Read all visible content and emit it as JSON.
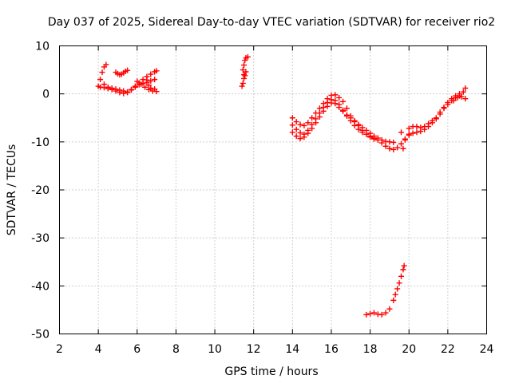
{
  "chart_data": {
    "type": "scatter",
    "title": "Day 037 of 2025, Sidereal Day-to-day VTEC variation (SDTVAR) for receiver rio2",
    "xlabel": "GPS time / hours",
    "ylabel": "SDTVAR / TECUs",
    "xlim": [
      2,
      24
    ],
    "ylim": [
      -50,
      10
    ],
    "xticks": [
      "2",
      "4",
      "6",
      "8",
      "10",
      "12",
      "14",
      "16",
      "18",
      "20",
      "22",
      "24"
    ],
    "yticks": [
      "10",
      "0",
      "-10",
      "-20",
      "-30",
      "-40",
      "-50"
    ],
    "grid": true,
    "marker": "+",
    "color": "#ff0000",
    "series": [
      {
        "name": "sat-a",
        "points": [
          [
            4.0,
            1.6
          ],
          [
            4.1,
            3.0
          ],
          [
            4.2,
            4.5
          ],
          [
            4.3,
            5.6
          ],
          [
            4.4,
            6.1
          ],
          [
            4.3,
            2.0
          ],
          [
            4.5,
            1.4
          ],
          [
            4.7,
            1.2
          ],
          [
            4.9,
            1.0
          ],
          [
            5.1,
            0.8
          ],
          [
            5.3,
            0.6
          ],
          [
            5.5,
            0.4
          ],
          [
            5.7,
            0.8
          ],
          [
            5.9,
            1.4
          ],
          [
            6.1,
            1.9
          ],
          [
            6.3,
            2.2
          ],
          [
            6.5,
            2.4
          ],
          [
            6.7,
            2.7
          ],
          [
            6.9,
            3.0
          ]
        ]
      },
      {
        "name": "sat-b",
        "points": [
          [
            4.1,
            1.4
          ],
          [
            4.3,
            1.3
          ],
          [
            4.5,
            1.1
          ],
          [
            4.7,
            0.9
          ],
          [
            4.9,
            0.6
          ],
          [
            5.1,
            0.3
          ],
          [
            5.3,
            0.1
          ],
          [
            5.5,
            0.3
          ],
          [
            5.7,
            0.9
          ],
          [
            5.9,
            1.6
          ],
          [
            6.1,
            2.3
          ],
          [
            6.3,
            3.0
          ],
          [
            6.5,
            3.6
          ],
          [
            6.7,
            4.1
          ],
          [
            6.9,
            4.6
          ],
          [
            7.0,
            4.8
          ]
        ]
      },
      {
        "name": "sat-c",
        "points": [
          [
            4.9,
            4.5
          ],
          [
            5.0,
            4.2
          ],
          [
            5.1,
            4.0
          ],
          [
            5.2,
            4.1
          ],
          [
            5.3,
            4.4
          ],
          [
            5.4,
            4.7
          ],
          [
            5.5,
            4.9
          ]
        ]
      },
      {
        "name": "sat-d",
        "points": [
          [
            6.0,
            2.6
          ],
          [
            6.2,
            2.0
          ],
          [
            6.4,
            1.4
          ],
          [
            6.6,
            0.9
          ],
          [
            6.8,
            0.6
          ],
          [
            7.0,
            0.5
          ],
          [
            6.5,
            2.9
          ],
          [
            6.6,
            1.8
          ],
          [
            6.7,
            1.2
          ],
          [
            6.9,
            1.0
          ]
        ]
      },
      {
        "name": "sat-e",
        "points": [
          [
            11.4,
            1.6
          ],
          [
            11.45,
            2.2
          ],
          [
            11.5,
            3.2
          ],
          [
            11.5,
            4.0
          ],
          [
            11.45,
            5.0
          ],
          [
            11.5,
            6.0
          ],
          [
            11.55,
            7.0
          ],
          [
            11.6,
            7.5
          ],
          [
            11.7,
            7.7
          ],
          [
            11.6,
            4.6
          ],
          [
            11.55,
            3.8
          ]
        ]
      },
      {
        "name": "sat-f",
        "points": [
          [
            14.0,
            -5.0
          ],
          [
            14.2,
            -5.8
          ],
          [
            14.4,
            -6.4
          ],
          [
            14.6,
            -6.6
          ],
          [
            14.8,
            -6.0
          ],
          [
            15.0,
            -5.0
          ],
          [
            15.2,
            -4.0
          ],
          [
            15.4,
            -3.0
          ],
          [
            15.6,
            -2.0
          ],
          [
            15.8,
            -1.0
          ],
          [
            16.0,
            -0.3
          ],
          [
            16.2,
            -0.2
          ],
          [
            16.4,
            -0.8
          ],
          [
            16.6,
            -1.6
          ],
          [
            16.8,
            -3.0
          ],
          [
            17.0,
            -4.6
          ],
          [
            17.2,
            -5.6
          ],
          [
            17.4,
            -6.4
          ],
          [
            17.6,
            -7.0
          ],
          [
            17.8,
            -7.6
          ],
          [
            18.0,
            -8.2
          ],
          [
            18.2,
            -8.8
          ],
          [
            18.4,
            -9.2
          ],
          [
            18.6,
            -9.6
          ],
          [
            18.8,
            -9.9
          ],
          [
            19.0,
            -10.0
          ],
          [
            19.2,
            -10.1
          ]
        ]
      },
      {
        "name": "sat-g",
        "points": [
          [
            14.0,
            -6.5
          ],
          [
            14.2,
            -7.4
          ],
          [
            14.4,
            -8.1
          ],
          [
            14.6,
            -8.4
          ],
          [
            14.8,
            -7.6
          ],
          [
            15.0,
            -6.4
          ],
          [
            15.2,
            -5.2
          ],
          [
            15.4,
            -4.0
          ],
          [
            15.6,
            -2.8
          ],
          [
            15.8,
            -1.8
          ],
          [
            16.0,
            -1.2
          ],
          [
            16.2,
            -1.4
          ],
          [
            16.4,
            -2.2
          ],
          [
            16.6,
            -3.4
          ],
          [
            16.8,
            -4.6
          ],
          [
            17.0,
            -5.6
          ],
          [
            17.2,
            -6.6
          ],
          [
            17.4,
            -7.4
          ],
          [
            17.6,
            -8.0
          ],
          [
            17.8,
            -8.4
          ],
          [
            18.0,
            -8.8
          ],
          [
            18.2,
            -9.2
          ],
          [
            18.4,
            -9.6
          ],
          [
            18.6,
            -10.2
          ],
          [
            18.8,
            -10.9
          ],
          [
            19.0,
            -11.4
          ],
          [
            19.2,
            -11.6
          ],
          [
            19.4,
            -11.2
          ],
          [
            19.6,
            -10.4
          ],
          [
            19.8,
            -9.4
          ],
          [
            20.0,
            -8.6
          ]
        ]
      },
      {
        "name": "sat-h",
        "points": [
          [
            14.0,
            -8.0
          ],
          [
            14.2,
            -8.8
          ],
          [
            14.4,
            -9.3
          ],
          [
            14.6,
            -9.0
          ],
          [
            14.8,
            -8.2
          ],
          [
            15.0,
            -7.2
          ],
          [
            15.2,
            -6.0
          ],
          [
            15.4,
            -4.8
          ],
          [
            15.6,
            -3.6
          ],
          [
            15.8,
            -2.6
          ],
          [
            16.0,
            -1.9
          ],
          [
            16.2,
            -2.0
          ],
          [
            16.4,
            -2.8
          ],
          [
            16.6,
            -3.6
          ],
          [
            16.8,
            -4.4
          ],
          [
            17.0,
            -5.0
          ],
          [
            17.2,
            -5.8
          ],
          [
            17.4,
            -6.6
          ],
          [
            17.6,
            -7.6
          ],
          [
            17.8,
            -8.4
          ],
          [
            18.0,
            -9.0
          ],
          [
            18.2,
            -9.4
          ]
        ]
      },
      {
        "name": "sat-i",
        "points": [
          [
            19.6,
            -8.0
          ],
          [
            19.7,
            -11.4
          ],
          [
            19.8,
            -9.6
          ],
          [
            20.0,
            -7.2
          ],
          [
            20.2,
            -6.8
          ],
          [
            20.4,
            -6.8
          ],
          [
            20.6,
            -7.0
          ],
          [
            20.8,
            -6.8
          ],
          [
            21.0,
            -6.2
          ],
          [
            21.2,
            -5.6
          ],
          [
            21.4,
            -5.0
          ],
          [
            21.6,
            -3.8
          ],
          [
            21.8,
            -2.8
          ],
          [
            22.0,
            -1.8
          ],
          [
            22.2,
            -1.0
          ],
          [
            22.4,
            -0.4
          ],
          [
            22.6,
            0.0
          ],
          [
            22.8,
            0.4
          ],
          [
            22.9,
            1.2
          ],
          [
            22.9,
            -1.0
          ],
          [
            22.7,
            -0.6
          ],
          [
            22.5,
            -0.8
          ],
          [
            22.3,
            -1.4
          ]
        ]
      },
      {
        "name": "sat-j",
        "points": [
          [
            20.0,
            -8.4
          ],
          [
            20.2,
            -8.2
          ],
          [
            20.4,
            -8.0
          ],
          [
            20.6,
            -7.8
          ],
          [
            20.8,
            -7.4
          ],
          [
            21.0,
            -6.8
          ],
          [
            21.2,
            -6.0
          ],
          [
            21.4,
            -5.2
          ],
          [
            21.6,
            -4.2
          ],
          [
            21.8,
            -3.0
          ],
          [
            22.0,
            -2.2
          ],
          [
            22.2,
            -1.4
          ],
          [
            22.4,
            -0.8
          ],
          [
            22.6,
            -0.4
          ]
        ]
      },
      {
        "name": "sat-k",
        "points": [
          [
            17.8,
            -46.0
          ],
          [
            18.0,
            -45.8
          ],
          [
            18.2,
            -45.6
          ],
          [
            18.4,
            -45.9
          ],
          [
            18.6,
            -46.0
          ],
          [
            18.8,
            -45.6
          ],
          [
            19.0,
            -44.8
          ],
          [
            19.2,
            -43.0
          ],
          [
            19.3,
            -41.8
          ],
          [
            19.4,
            -40.6
          ],
          [
            19.5,
            -39.4
          ],
          [
            19.6,
            -38.0
          ],
          [
            19.7,
            -36.6
          ],
          [
            19.75,
            -35.8
          ]
        ]
      }
    ]
  }
}
